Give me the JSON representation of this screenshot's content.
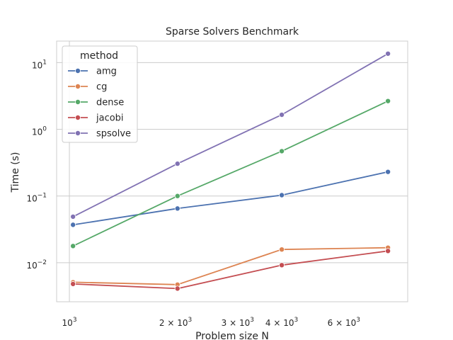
{
  "chart_data": {
    "type": "line",
    "title": "Sparse Solvers Benchmark",
    "xlabel": "Problem size N",
    "ylabel": "Time (s)",
    "xscale": "log",
    "yscale": "log",
    "xlim": [
      920,
      9100
    ],
    "ylim": [
      0.0026,
      21
    ],
    "grid": true,
    "legend": {
      "title": "method",
      "placement": "top-left"
    },
    "x": [
      1024,
      2025,
      4000,
      8000
    ],
    "x_ticks": [
      {
        "value": 1000,
        "base": "10",
        "exp": "3"
      },
      {
        "value": 2000,
        "base": "2 × 10",
        "exp": "3"
      },
      {
        "value": 3000,
        "base": "3 × 10",
        "exp": "3"
      },
      {
        "value": 4000,
        "base": "4 × 10",
        "exp": "3"
      },
      {
        "value": 6000,
        "base": "6 × 10",
        "exp": "3"
      }
    ],
    "y_ticks": [
      {
        "value": 0.01,
        "base": "10",
        "exp": "−2"
      },
      {
        "value": 0.1,
        "base": "10",
        "exp": "−1"
      },
      {
        "value": 1,
        "base": "10",
        "exp": "0"
      },
      {
        "value": 10,
        "base": "10",
        "exp": "1"
      }
    ],
    "series": [
      {
        "name": "amg",
        "color": "#4c72b0",
        "values": [
          0.037,
          0.065,
          0.103,
          0.23
        ]
      },
      {
        "name": "cg",
        "color": "#dd8452",
        "values": [
          0.0051,
          0.0047,
          0.0158,
          0.0168
        ]
      },
      {
        "name": "dense",
        "color": "#55a868",
        "values": [
          0.0178,
          0.1,
          0.47,
          2.65
        ]
      },
      {
        "name": "jacobi",
        "color": "#c44e52",
        "values": [
          0.0048,
          0.0041,
          0.0092,
          0.015
        ]
      },
      {
        "name": "spsolve",
        "color": "#8172b3",
        "values": [
          0.049,
          0.305,
          1.65,
          13.6
        ]
      }
    ]
  }
}
